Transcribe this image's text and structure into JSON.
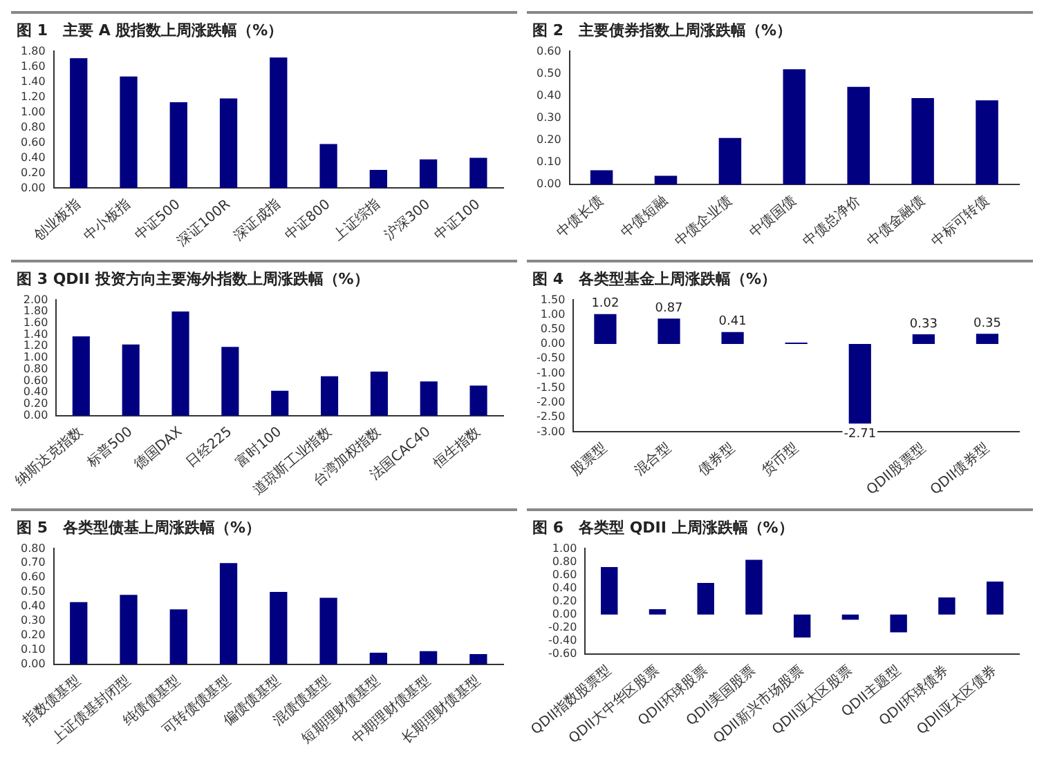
{
  "chart_data": [
    {
      "type": "bar",
      "title": "图 1　主要 A 股指数上周涨跌幅（%）",
      "categories": [
        "创业板指",
        "中小板指",
        "中证500",
        "深证100R",
        "深证成指",
        "中证800",
        "上证综指",
        "沪深300",
        "中证100"
      ],
      "values": [
        1.71,
        1.47,
        1.13,
        1.18,
        1.72,
        0.58,
        0.24,
        0.38,
        0.4
      ],
      "color": "#000080",
      "ylim": [
        0,
        1.8
      ],
      "yticks": [
        {
          "value": 0,
          "label": "0.00"
        },
        {
          "value": 0.2,
          "label": "0.20"
        },
        {
          "value": 0.4,
          "label": "0.40"
        },
        {
          "value": 0.6,
          "label": "0.60"
        },
        {
          "value": 0.8,
          "label": "0.80"
        },
        {
          "value": 1,
          "label": "1.00"
        },
        {
          "value": 1.2,
          "label": "1.20"
        },
        {
          "value": 1.4,
          "label": "1.40"
        },
        {
          "value": 1.6,
          "label": "1.60"
        },
        {
          "value": 1.8,
          "label": "1.80"
        }
      ],
      "grid": false,
      "legend": false
    },
    {
      "type": "bar",
      "title": "图 2　主要债券指数上周涨跌幅（%）",
      "categories": [
        "中债长债",
        "中债短融",
        "中债企业债",
        "中债国债",
        "中债总净价",
        "中债金融债",
        "中标可转债"
      ],
      "values": [
        0.065,
        0.04,
        0.21,
        0.52,
        0.44,
        0.39,
        0.38
      ],
      "color": "#000080",
      "ylim": [
        0,
        0.6
      ],
      "yticks": [
        {
          "value": 0,
          "label": "0.00"
        },
        {
          "value": 0.1,
          "label": "0.10"
        },
        {
          "value": 0.2,
          "label": "0.20"
        },
        {
          "value": 0.3,
          "label": "0.30"
        },
        {
          "value": 0.4,
          "label": "0.40"
        },
        {
          "value": 0.5,
          "label": "0.50"
        },
        {
          "value": 0.6,
          "label": "0.60"
        }
      ],
      "grid": false,
      "legend": false
    },
    {
      "type": "bar",
      "title": "图 3 QDII 投资方向主要海外指数上周涨跌幅（%）",
      "categories": [
        "纳斯达克指数",
        "标普500",
        "德国DAX",
        "日经225",
        "富时100",
        "道琼斯工业指数",
        "台湾加权指数",
        "法国CAC40",
        "恒生指数"
      ],
      "values": [
        1.37,
        1.23,
        1.8,
        1.19,
        0.43,
        0.68,
        0.76,
        0.59,
        0.52
      ],
      "color": "#000080",
      "ylim": [
        0,
        2
      ],
      "yticks": [
        {
          "value": 0,
          "label": "0.00"
        },
        {
          "value": 0.2,
          "label": "0.20"
        },
        {
          "value": 0.4,
          "label": "0.40"
        },
        {
          "value": 0.6,
          "label": "0.60"
        },
        {
          "value": 0.8,
          "label": "0.80"
        },
        {
          "value": 1,
          "label": "1.00"
        },
        {
          "value": 1.2,
          "label": "1.20"
        },
        {
          "value": 1.4,
          "label": "1.40"
        },
        {
          "value": 1.6,
          "label": "1.60"
        },
        {
          "value": 1.8,
          "label": "1.80"
        },
        {
          "value": 2,
          "label": "2.00"
        }
      ],
      "grid": false,
      "legend": false
    },
    {
      "type": "bar",
      "title": "图 4　各类型基金上周涨跌幅（%）",
      "categories": [
        "股票型",
        "混合型",
        "债券型",
        "货币型",
        null,
        "QDII股票型",
        "QDII债券型"
      ],
      "values": [
        1.02,
        0.87,
        0.41,
        0.05,
        -2.71,
        0.33,
        0.35
      ],
      "value_labels": [
        "1.02",
        "0.87",
        "0.41",
        null,
        "-2.71",
        "0.33",
        "0.35"
      ],
      "color": "#000080",
      "ylim": [
        -3,
        1.5
      ],
      "yticks": [
        {
          "value": -3,
          "label": "-3.00"
        },
        {
          "value": -2.5,
          "label": "-2.50"
        },
        {
          "value": -2,
          "label": "-2.00"
        },
        {
          "value": -1.5,
          "label": "-1.50"
        },
        {
          "value": -1,
          "label": "-1.00"
        },
        {
          "value": -0.5,
          "label": "-0.50"
        },
        {
          "value": 0,
          "label": "0.00"
        },
        {
          "value": 0.5,
          "label": "0.50"
        },
        {
          "value": 1,
          "label": "1.00"
        },
        {
          "value": 1.5,
          "label": "1.50"
        }
      ],
      "grid": false,
      "legend": false
    },
    {
      "type": "bar",
      "title": "图 5　各类型债基上周涨跌幅（%）",
      "categories": [
        "指数债基型",
        "上证债基封闭型",
        "纯债债基型",
        "可转债债基型",
        "偏债债基型",
        "混债债基型",
        "短期理财债基型",
        "中期理财债基型",
        "长期理财债基型"
      ],
      "values": [
        0.43,
        0.48,
        0.38,
        0.7,
        0.5,
        0.46,
        0.08,
        0.09,
        0.07
      ],
      "color": "#000080",
      "ylim": [
        0,
        0.8
      ],
      "yticks": [
        {
          "value": 0,
          "label": "0.00"
        },
        {
          "value": 0.1,
          "label": "0.10"
        },
        {
          "value": 0.2,
          "label": "0.20"
        },
        {
          "value": 0.3,
          "label": "0.30"
        },
        {
          "value": 0.4,
          "label": "0.40"
        },
        {
          "value": 0.5,
          "label": "0.50"
        },
        {
          "value": 0.6,
          "label": "0.60"
        },
        {
          "value": 0.7,
          "label": "0.70"
        },
        {
          "value": 0.8,
          "label": "0.80"
        }
      ],
      "grid": false,
      "legend": false
    },
    {
      "type": "bar",
      "title": "图 6　各类型 QDII 上周涨跌幅（%）",
      "categories": [
        "QDII指数股票型",
        "QDII大中华区股票",
        "QDII环球股票",
        "QDII美国股票",
        "QDII新兴市场股票",
        "QDII亚太区股票",
        "QDII主题型",
        "QDII环球债券",
        "QDII亚太区债券"
      ],
      "values": [
        0.72,
        0.08,
        0.48,
        0.83,
        -0.35,
        -0.08,
        -0.27,
        0.26,
        0.5
      ],
      "color": "#000080",
      "ylim": [
        -0.6,
        1
      ],
      "yticks": [
        {
          "value": -0.6,
          "label": "-0.60"
        },
        {
          "value": -0.4,
          "label": "-0.40"
        },
        {
          "value": -0.2,
          "label": "-0.20"
        },
        {
          "value": 0,
          "label": "0.00"
        },
        {
          "value": 0.2,
          "label": "0.20"
        },
        {
          "value": 0.4,
          "label": "0.40"
        },
        {
          "value": 0.6,
          "label": "0.60"
        },
        {
          "value": 0.8,
          "label": "0.80"
        },
        {
          "value": 1,
          "label": "1.00"
        }
      ],
      "grid": false,
      "legend": false
    }
  ]
}
